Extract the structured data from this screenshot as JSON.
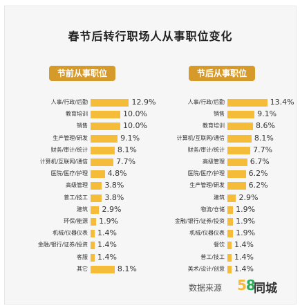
{
  "title": "春节后转行职场人从事职位变化",
  "colors": {
    "bar": "#f5bc3a",
    "badge": "#d69a2a"
  },
  "source_label": "数据来源",
  "logo": {
    "num5": "5",
    "num8": "8",
    "text": "同城"
  },
  "chart_data": [
    {
      "type": "bar",
      "title": "节前从事职位",
      "orientation": "horizontal",
      "categories": [
        "人事/行政/后勤",
        "教育培训",
        "销售",
        "生产管理/研发",
        "财务/审计/统计",
        "计算机/互联网/通信",
        "医院/医疗/护理",
        "高级管理",
        "普工/技工",
        "建筑",
        "环保/能源",
        "机械/仪器仪表",
        "金融/银行/证券/投资",
        "客服",
        "其它"
      ],
      "values": [
        12.9,
        10.0,
        10.0,
        9.1,
        8.1,
        7.7,
        4.8,
        3.8,
        3.8,
        2.9,
        1.9,
        1.4,
        1.4,
        1.4,
        8.1
      ],
      "labels": [
        "12.9%",
        "10.0%",
        "10.0%",
        "9.1%",
        "8.1%",
        "7.7%",
        "4.8%",
        "3.8%",
        "3.8%",
        "2.9%",
        "1.9%",
        "1.4%",
        "1.4%",
        "1.4%",
        "8.1%"
      ],
      "unit": "%"
    },
    {
      "type": "bar",
      "title": "节后从事职位",
      "orientation": "horizontal",
      "categories": [
        "人事/行政/后勤",
        "销售",
        "教育培训",
        "计算机/互联网/通信",
        "财务/审计/统计",
        "高级管理",
        "医院/医疗/护理",
        "生产管理/研发",
        "建筑",
        "物流/仓储",
        "金融/银行/证券/投资",
        "机械/仪器仪表",
        "餐饮",
        "普工/技工",
        "美术/设计/创意"
      ],
      "values": [
        13.4,
        9.1,
        8.6,
        8.1,
        7.7,
        6.7,
        6.2,
        6.2,
        2.9,
        1.9,
        1.9,
        1.9,
        1.4,
        1.4,
        1.4
      ],
      "labels": [
        "13.4%",
        "9.1%",
        "8.6%",
        "8.1%",
        "7.7%",
        "6.7%",
        "6.2%",
        "6.2%",
        "2.9%",
        "1.9%",
        "1.9%",
        "1.9%",
        "1.4%",
        "1.4%",
        "1.4%"
      ],
      "unit": "%"
    }
  ]
}
